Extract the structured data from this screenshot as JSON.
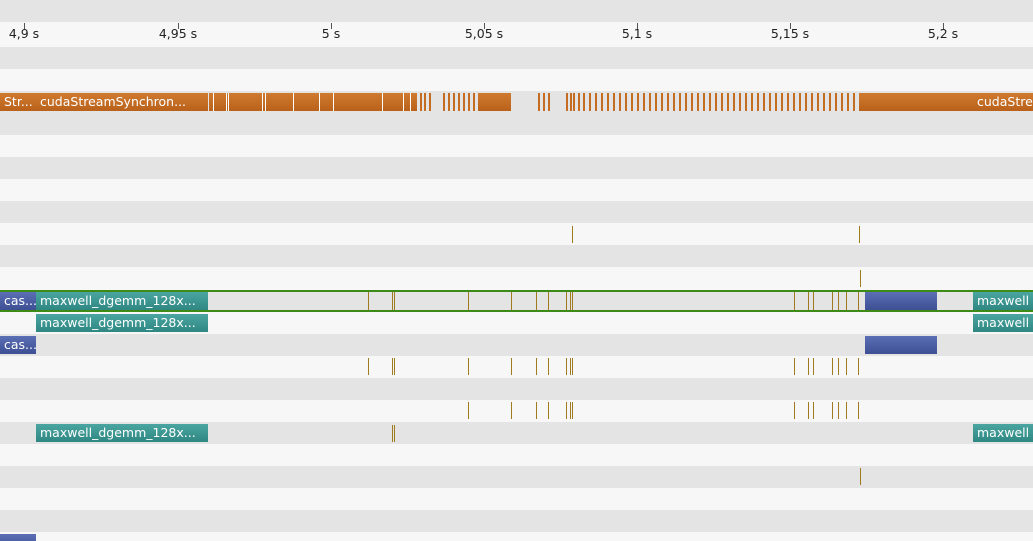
{
  "ruler": {
    "ticks": [
      "4,9 s",
      "4,95 s",
      "5 s",
      "5,05 s",
      "5,1 s",
      "5,15 s",
      "5,2 s"
    ]
  },
  "labels": {
    "api_left": "Str...",
    "api_main": "cudaStreamSynchron...",
    "api_right": "cudaStre",
    "memop_left": "cas...",
    "kernel": "maxwell_dgemm_128x...",
    "kernel_right": "maxwell"
  },
  "colors": {
    "api": "#c46c22",
    "kernel": "#3a9893",
    "memop": "#4a5ca4",
    "marker": "#a07a1e",
    "selection": "#3d8a17"
  }
}
